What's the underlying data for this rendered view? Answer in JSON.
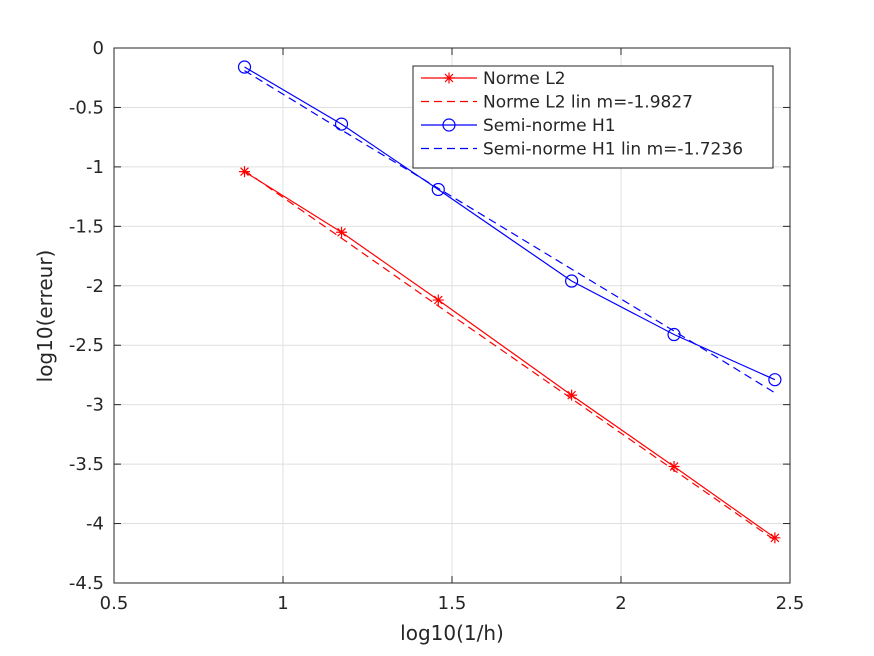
{
  "chart_data": {
    "type": "line",
    "xlabel": "log10(1/h)",
    "ylabel": "log10(erreur)",
    "xlim": [
      0.5,
      2.5
    ],
    "ylim": [
      -4.5,
      0
    ],
    "xticks": [
      0.5,
      1,
      1.5,
      2,
      2.5
    ],
    "xtick_labels": [
      "0.5",
      "1",
      "1.5",
      "2",
      "2.5"
    ],
    "yticks": [
      0,
      -0.5,
      -1,
      -1.5,
      -2,
      -2.5,
      -3,
      -3.5,
      -4,
      -4.5
    ],
    "ytick_labels": [
      "0",
      "-0.5",
      "-1",
      "-1.5",
      "-2",
      "-2.5",
      "-3",
      "-3.5",
      "-4",
      "-4.5"
    ],
    "grid": true,
    "legend_position": "top-right",
    "x": [
      0.8861,
      1.1732,
      1.4594,
      1.8539,
      2.1569,
      2.4553
    ],
    "series": [
      {
        "name": "Norme L2",
        "color": "#ff0000",
        "marker": "asterisk",
        "line": "solid",
        "values": [
          -1.04,
          -1.55,
          -2.12,
          -2.92,
          -3.52,
          -4.12
        ]
      },
      {
        "name": "Norme L2 lin m=-1.9827",
        "color": "#ff0000",
        "marker": "none",
        "line": "dashed",
        "values": [
          -1.03,
          -1.6,
          -2.17,
          -2.95,
          -3.55,
          -4.14
        ]
      },
      {
        "name": "Semi-norme H1",
        "color": "#0000ff",
        "marker": "circle",
        "line": "solid",
        "values": [
          -0.16,
          -0.64,
          -1.19,
          -1.96,
          -2.41,
          -2.79
        ]
      },
      {
        "name": "Semi-norme H1 lin m=-1.7236",
        "color": "#0000ff",
        "marker": "none",
        "line": "dashed",
        "values": [
          -0.19,
          -0.69,
          -1.18,
          -1.86,
          -2.38,
          -2.9
        ]
      }
    ]
  }
}
